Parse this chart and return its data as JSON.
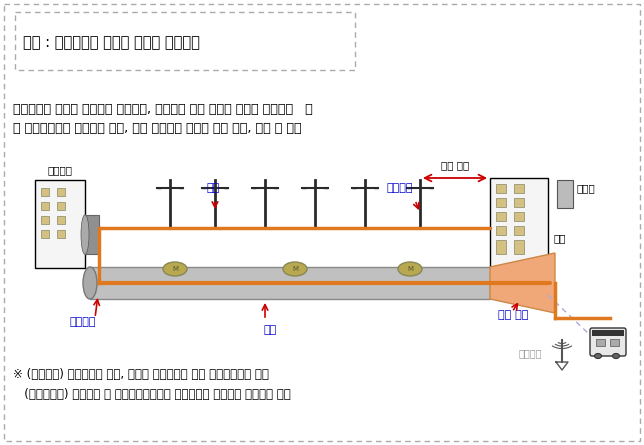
{
  "title_box_text": "참고 : 이동통신망 구축에 필요한 기반설비",
  "desc_line1": "이동통신망 구축을 위해서는 건물상면, 지하공간 등에 무선국 장비를 설치하고   이",
  "desc_line2": "를 통신국사까지 연결해야 하며, 이때 광케이블 설치를 위한 관로, 전주 등 필요",
  "footer_text1": "※ (인입구간) 가입자측의 건물, 단자함 등으로부터 최초 접속점까지의 구간",
  "footer_text2": "   (비인입구간) 시내구간 중 설비제공사업자의 국사로부터 인입구간 전까지의 구간",
  "label_tongshin": "통신국사",
  "label_jeonju": "전주",
  "label_inibjeonju": "인입전주",
  "label_inib_guygan": "인입 구간",
  "label_museonkuk": "무선국",
  "label_geonmul": "건물",
  "label_gwangkeibeul": "광케이블",
  "label_gwanro": "관로",
  "label_inib_gwanro": "인입 관로",
  "label_jiha": "지하공간",
  "bg_color": "#ffffff",
  "border_color": "#aaaaaa",
  "orange_color": "#e07820",
  "blue_color": "#0000cc",
  "red_color": "#cc0000",
  "gray_color": "#999999",
  "pipe_color": "#c0c0c0",
  "pipe_edge": "#888888",
  "inib_gwanro_color": "#f0a878",
  "window_color": "#d4c080",
  "building_color": "#f5f5f5"
}
